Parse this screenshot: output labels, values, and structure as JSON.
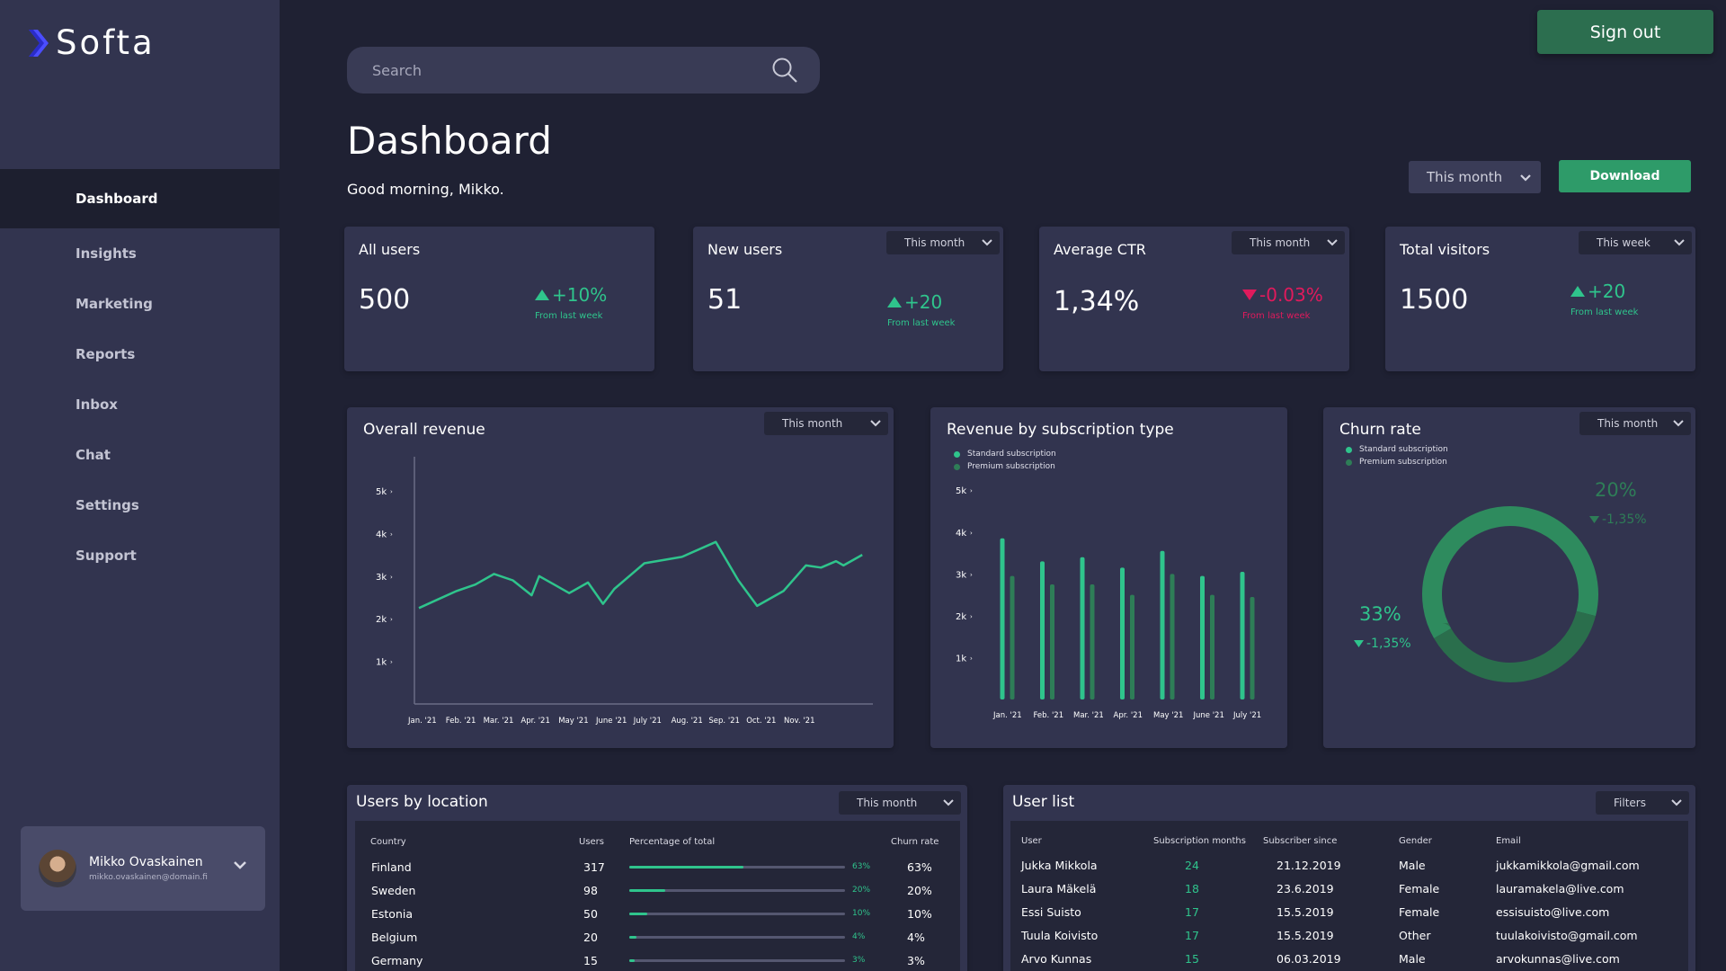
{
  "app": {
    "name": "Softa"
  },
  "sidebar": {
    "items": [
      {
        "label": "Dashboard",
        "active": true
      },
      {
        "label": "Insights"
      },
      {
        "label": "Marketing"
      },
      {
        "label": "Reports"
      },
      {
        "label": "Inbox"
      },
      {
        "label": "Chat"
      },
      {
        "label": "Settings"
      },
      {
        "label": "Support"
      }
    ],
    "profile": {
      "name": "Mikko Ovaskainen",
      "email": "mikko.ovaskainen@domain.fi"
    }
  },
  "header": {
    "search_placeholder": "Search",
    "signout_label": "Sign out",
    "title": "Dashboard",
    "greeting": "Good morning, Mikko.",
    "period": "This month",
    "download_label": "Download"
  },
  "stats": [
    {
      "title": "All users",
      "value": "500",
      "delta": "+10%",
      "direction": "up",
      "sub": "From last week",
      "dropdown": ""
    },
    {
      "title": "New users",
      "value": "51",
      "delta": "+20",
      "direction": "up",
      "sub": "From last week",
      "dropdown": "This month"
    },
    {
      "title": "Average CTR",
      "value": "1,34%",
      "delta": "-0.03%",
      "direction": "down",
      "sub": "From last week",
      "dropdown": "This month"
    },
    {
      "title": "Total visitors",
      "value": "1500",
      "delta": "+20",
      "direction": "up",
      "sub": "From last week",
      "dropdown": "This week"
    }
  ],
  "panels": {
    "overall_revenue": {
      "title": "Overall revenue",
      "dropdown": "This month"
    },
    "revenue_by_sub": {
      "title": "Revenue by subscription type",
      "legend": [
        "Standard subscription",
        "Premium subscription"
      ]
    },
    "churn": {
      "title": "Churn rate",
      "dropdown": "This month",
      "legend": [
        "Standard subscription",
        "Premium subscription"
      ],
      "premium_pct": "20%",
      "premium_delta": "-1,35%",
      "standard_pct": "33%",
      "standard_delta": "-1,35%"
    }
  },
  "colors": {
    "accent": "#2fc48c",
    "accent_dark": "#2e7d57",
    "negative": "#e01a5c",
    "background": "#1f2133",
    "card": "#32344f"
  },
  "chart_data": [
    {
      "type": "line",
      "title": "Overall revenue",
      "x": [
        "Jan. '21",
        "Feb. '21",
        "Mar. '21",
        "Apr. '21",
        "May '21",
        "June '21",
        "July '21",
        "Aug. '21",
        "Sep. '21",
        "Oct. '21",
        "Nov. '21"
      ],
      "y_ticks": [
        "1k",
        "2k",
        "3k",
        "4k",
        "5k"
      ],
      "ylim": [
        0,
        5800
      ],
      "points": [
        [
          0,
          2250
        ],
        [
          0.5,
          2450
        ],
        [
          1,
          2650
        ],
        [
          1.5,
          2800
        ],
        [
          2,
          3050
        ],
        [
          2.5,
          2900
        ],
        [
          3,
          2550
        ],
        [
          3.2,
          3000
        ],
        [
          3.6,
          2800
        ],
        [
          4,
          2600
        ],
        [
          4.5,
          2850
        ],
        [
          4.9,
          2350
        ],
        [
          5.2,
          2700
        ],
        [
          6,
          3300
        ],
        [
          7,
          3450
        ],
        [
          7.9,
          3800
        ],
        [
          8.5,
          2900
        ],
        [
          9,
          2300
        ],
        [
          9.7,
          2650
        ],
        [
          10.3,
          3250
        ],
        [
          10.7,
          3200
        ],
        [
          11.1,
          3350
        ],
        [
          11.3,
          3250
        ],
        [
          11.8,
          3500
        ]
      ]
    },
    {
      "type": "bar",
      "title": "Revenue by subscription type",
      "categories": [
        "Jan. '21",
        "Feb. '21",
        "Mar. '21",
        "Apr. '21",
        "May '21",
        "June '21",
        "July '21"
      ],
      "y_ticks": [
        "1k",
        "2k",
        "3k",
        "4k",
        "5k"
      ],
      "ylim": [
        0,
        5800
      ],
      "series": [
        {
          "name": "Standard subscription",
          "values": [
            3850,
            3300,
            3400,
            3150,
            3550,
            2950,
            3050
          ]
        },
        {
          "name": "Premium subscription",
          "values": [
            2950,
            2750,
            2750,
            2500,
            3000,
            2500,
            2450
          ]
        }
      ]
    },
    {
      "type": "pie",
      "title": "Churn rate",
      "categories": [
        "Standard subscription",
        "Premium subscription"
      ],
      "values": [
        33,
        20
      ]
    }
  ],
  "location_table": {
    "title": "Users by location",
    "dropdown": "This month",
    "headers": [
      "Country",
      "Users",
      "Percentage of total",
      "Churn rate"
    ],
    "rows": [
      {
        "country": "Finland",
        "users": "317",
        "pct": 0.63,
        "pct_label": "63%",
        "churn": "63%"
      },
      {
        "country": "Sweden",
        "users": "98",
        "pct": 0.2,
        "pct_label": "20%",
        "churn": "20%"
      },
      {
        "country": "Estonia",
        "users": "50",
        "pct": 0.1,
        "pct_label": "10%",
        "churn": "10%"
      },
      {
        "country": "Belgium",
        "users": "20",
        "pct": 0.04,
        "pct_label": "4%",
        "churn": "4%"
      },
      {
        "country": "Germany",
        "users": "15",
        "pct": 0.03,
        "pct_label": "3%",
        "churn": "3%"
      }
    ]
  },
  "user_table": {
    "title": "User list",
    "dropdown": "Filters",
    "headers": [
      "User",
      "Subscription months",
      "Subscriber since",
      "Gender",
      "Email"
    ],
    "rows": [
      {
        "user": "Jukka Mikkola",
        "months": "24",
        "since": "21.12.2019",
        "gender": "Male",
        "email": "jukkamikkola@gmail.com"
      },
      {
        "user": "Laura Mäkelä",
        "months": "18",
        "since": "23.6.2019",
        "gender": "Female",
        "email": "lauramakela@live.com"
      },
      {
        "user": "Essi Suisto",
        "months": "17",
        "since": "15.5.2019",
        "gender": "Female",
        "email": "essisuisto@live.com"
      },
      {
        "user": "Tuula Koivisto",
        "months": "17",
        "since": "15.5.2019",
        "gender": "Other",
        "email": "tuulakoivisto@gmail.com"
      },
      {
        "user": "Arvo Kunnas",
        "months": "15",
        "since": "06.03.2019",
        "gender": "Male",
        "email": "arvokunnas@live.com"
      }
    ]
  }
}
